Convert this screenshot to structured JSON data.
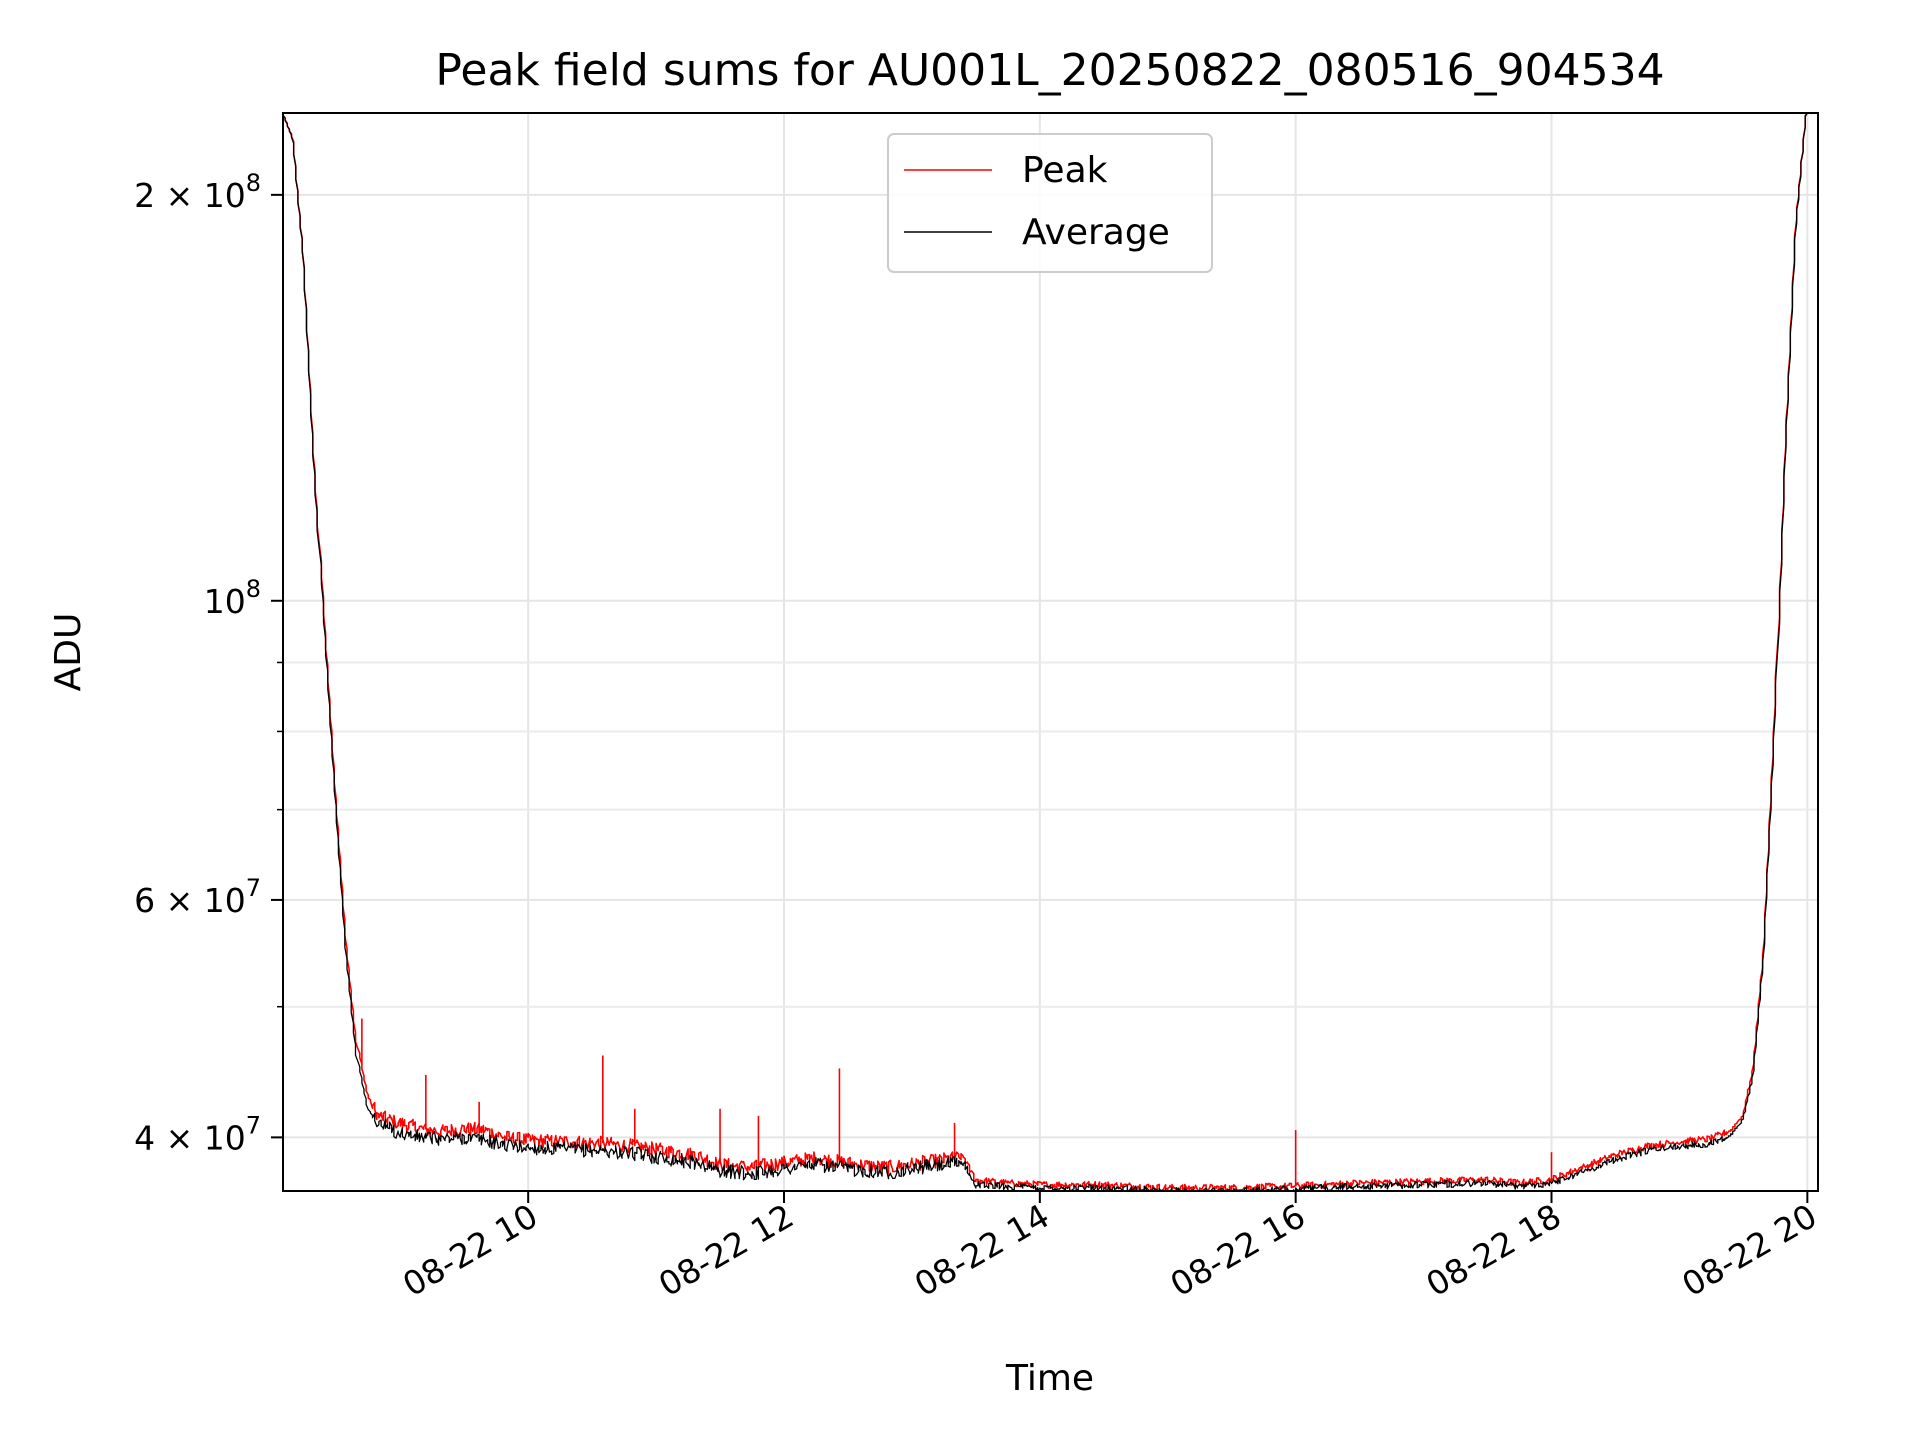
{
  "chart_data": {
    "type": "line",
    "title": "Peak field sums for AU001L_20250822_080516_904534",
    "xlabel": "Time",
    "ylabel": "ADU",
    "y_scale": "log",
    "xlim": [
      "2025-08-22 08:05",
      "2025-08-22 20:05"
    ],
    "ylim": [
      36500000,
      230000000
    ],
    "grid": true,
    "legend_position": "upper-center",
    "x_ticks": [
      {
        "value": "2025-08-22 10:00",
        "label": "08-22 10"
      },
      {
        "value": "2025-08-22 12:00",
        "label": "08-22 12"
      },
      {
        "value": "2025-08-22 14:00",
        "label": "08-22 14"
      },
      {
        "value": "2025-08-22 16:00",
        "label": "08-22 16"
      },
      {
        "value": "2025-08-22 18:00",
        "label": "08-22 18"
      },
      {
        "value": "2025-08-22 20:00",
        "label": "08-22 20"
      }
    ],
    "y_major_ticks": [
      {
        "value": 40000000,
        "base": "4 × 10",
        "exp": "7"
      },
      {
        "value": 60000000,
        "base": "6 × 10",
        "exp": "7"
      },
      {
        "value": 100000000,
        "base": "10",
        "exp": "8"
      },
      {
        "value": 200000000,
        "base": "2 × 10",
        "exp": "8"
      }
    ],
    "y_minor_ticks": [
      50000000,
      70000000,
      80000000,
      90000000
    ],
    "series": [
      {
        "name": "Peak",
        "color": "#ff0000",
        "x": [
          "2025-08-22 08:05",
          "2025-08-22 08:10",
          "2025-08-22 08:15",
          "2025-08-22 08:20",
          "2025-08-22 08:25",
          "2025-08-22 08:30",
          "2025-08-22 08:35",
          "2025-08-22 08:40",
          "2025-08-22 08:45",
          "2025-08-22 08:50",
          "2025-08-22 09:00",
          "2025-08-22 09:10",
          "2025-08-22 09:20",
          "2025-08-22 09:30",
          "2025-08-22 09:40",
          "2025-08-22 09:50",
          "2025-08-22 10:00",
          "2025-08-22 10:20",
          "2025-08-22 10:35",
          "2025-08-22 10:50",
          "2025-08-22 11:00",
          "2025-08-22 11:20",
          "2025-08-22 11:30",
          "2025-08-22 11:45",
          "2025-08-22 12:00",
          "2025-08-22 12:15",
          "2025-08-22 12:25",
          "2025-08-22 12:40",
          "2025-08-22 12:50",
          "2025-08-22 13:00",
          "2025-08-22 13:15",
          "2025-08-22 13:25",
          "2025-08-22 13:30",
          "2025-08-22 13:45",
          "2025-08-22 14:00",
          "2025-08-22 14:30",
          "2025-08-22 15:00",
          "2025-08-22 15:30",
          "2025-08-22 16:00",
          "2025-08-22 16:30",
          "2025-08-22 17:00",
          "2025-08-22 17:30",
          "2025-08-22 17:45",
          "2025-08-22 18:00",
          "2025-08-22 18:15",
          "2025-08-22 18:30",
          "2025-08-22 18:45",
          "2025-08-22 19:00",
          "2025-08-22 19:15",
          "2025-08-22 19:25",
          "2025-08-22 19:30",
          "2025-08-22 19:35",
          "2025-08-22 19:40",
          "2025-08-22 19:45",
          "2025-08-22 19:50",
          "2025-08-22 19:55",
          "2025-08-22 20:00"
        ],
        "y": [
          230000000,
          220000000,
          180000000,
          128000000,
          95000000,
          72000000,
          56000000,
          47000000,
          43000000,
          41500000,
          41000000,
          40600000,
          40400000,
          40600000,
          40500000,
          40000000,
          39800000,
          39700000,
          39600000,
          39400000,
          39200000,
          38800000,
          38200000,
          38000000,
          38300000,
          38600000,
          38400000,
          38100000,
          38000000,
          38200000,
          38500000,
          38700000,
          37200000,
          37000000,
          36900000,
          36900000,
          36700000,
          36700000,
          36800000,
          37000000,
          37100000,
          37200000,
          37000000,
          37200000,
          38000000,
          38800000,
          39400000,
          39700000,
          39900000,
          40500000,
          41500000,
          45000000,
          55000000,
          80000000,
          130000000,
          190000000,
          230000000
        ],
        "spikes": [
          {
            "x": "2025-08-22 08:42",
            "y": 49000000
          },
          {
            "x": "2025-08-22 09:12",
            "y": 44500000
          },
          {
            "x": "2025-08-22 09:37",
            "y": 42500000
          },
          {
            "x": "2025-08-22 10:35",
            "y": 46000000
          },
          {
            "x": "2025-08-22 10:50",
            "y": 42000000
          },
          {
            "x": "2025-08-22 11:30",
            "y": 42000000
          },
          {
            "x": "2025-08-22 11:48",
            "y": 41500000
          },
          {
            "x": "2025-08-22 12:26",
            "y": 45000000
          },
          {
            "x": "2025-08-22 13:20",
            "y": 41000000
          },
          {
            "x": "2025-08-22 16:00",
            "y": 40500000
          },
          {
            "x": "2025-08-22 18:00",
            "y": 39000000
          }
        ]
      },
      {
        "name": "Average",
        "color": "#000000",
        "x": [
          "2025-08-22 08:05",
          "2025-08-22 08:10",
          "2025-08-22 08:15",
          "2025-08-22 08:20",
          "2025-08-22 08:25",
          "2025-08-22 08:30",
          "2025-08-22 08:35",
          "2025-08-22 08:40",
          "2025-08-22 08:45",
          "2025-08-22 08:50",
          "2025-08-22 09:00",
          "2025-08-22 09:10",
          "2025-08-22 09:20",
          "2025-08-22 09:30",
          "2025-08-22 09:40",
          "2025-08-22 09:50",
          "2025-08-22 10:00",
          "2025-08-22 10:20",
          "2025-08-22 10:35",
          "2025-08-22 10:50",
          "2025-08-22 11:00",
          "2025-08-22 11:20",
          "2025-08-22 11:30",
          "2025-08-22 11:45",
          "2025-08-22 12:00",
          "2025-08-22 12:15",
          "2025-08-22 12:25",
          "2025-08-22 12:40",
          "2025-08-22 12:50",
          "2025-08-22 13:00",
          "2025-08-22 13:15",
          "2025-08-22 13:25",
          "2025-08-22 13:30",
          "2025-08-22 13:45",
          "2025-08-22 14:00",
          "2025-08-22 14:30",
          "2025-08-22 15:00",
          "2025-08-22 15:30",
          "2025-08-22 16:00",
          "2025-08-22 16:30",
          "2025-08-22 17:00",
          "2025-08-22 17:30",
          "2025-08-22 17:45",
          "2025-08-22 18:00",
          "2025-08-22 18:15",
          "2025-08-22 18:30",
          "2025-08-22 18:45",
          "2025-08-22 19:00",
          "2025-08-22 19:15",
          "2025-08-22 19:25",
          "2025-08-22 19:30",
          "2025-08-22 19:35",
          "2025-08-22 19:40",
          "2025-08-22 19:45",
          "2025-08-22 19:50",
          "2025-08-22 19:55",
          "2025-08-22 20:00"
        ],
        "y": [
          230000000,
          220000000,
          180000000,
          127000000,
          94000000,
          71000000,
          55000000,
          46000000,
          42000000,
          41000000,
          40300000,
          40000000,
          39900000,
          40000000,
          39800000,
          39500000,
          39300000,
          39200000,
          39100000,
          38900000,
          38700000,
          38300000,
          37800000,
          37600000,
          37900000,
          38200000,
          38000000,
          37800000,
          37700000,
          37900000,
          38200000,
          38300000,
          36900000,
          36800000,
          36700000,
          36700000,
          36500000,
          36500000,
          36600000,
          36800000,
          36900000,
          37000000,
          36800000,
          37000000,
          37700000,
          38500000,
          39100000,
          39400000,
          39600000,
          40200000,
          41200000,
          44500000,
          54500000,
          79000000,
          129000000,
          189000000,
          230000000
        ]
      }
    ]
  }
}
